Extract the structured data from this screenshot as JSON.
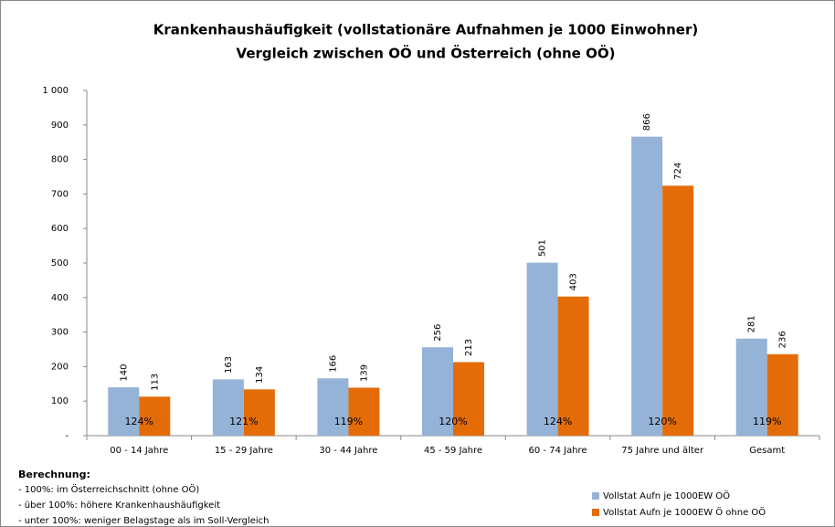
{
  "chart_data": {
    "type": "bar",
    "title": "Krankenhaushäufigkeit (vollstationäre Aufnahmen je 1000 Einwohner)",
    "subtitle": "Vergleich zwischen OÖ und Österreich (ohne OÖ)",
    "categories": [
      "00 - 14 Jahre",
      "15 - 29 Jahre",
      "30 - 44 Jahre",
      "45 - 59 Jahre",
      "60 - 74 Jahre",
      "75 Jahre und älter",
      "Gesamt"
    ],
    "series": [
      {
        "name": "Vollstat Aufn je 1000EW OÖ",
        "color": "#95b3d7",
        "values": [
          140,
          163,
          166,
          256,
          501,
          866,
          281
        ]
      },
      {
        "name": "Vollstat Aufn je 1000EW Ö ohne OÖ",
        "color": "#e36c09",
        "values": [
          113,
          134,
          139,
          213,
          403,
          724,
          236
        ]
      }
    ],
    "annotations": [
      "124%",
      "121%",
      "119%",
      "120%",
      "124%",
      "120%",
      "119%"
    ],
    "ylim": [
      0,
      1000
    ],
    "yticks": [
      {
        "value": 0,
        "label": "-"
      },
      100,
      200,
      300,
      400,
      500,
      600,
      700,
      800,
      900,
      {
        "value": 1000,
        "label": "1 000"
      }
    ],
    "grid": false,
    "legend": "bottom-right",
    "note_title": "Berechnung:",
    "notes": [
      "- 100%: im Österreichschnitt (ohne OÖ)",
      "- über 100%: höhere Krankenhaushäufigkeit",
      "- unter 100%: weniger Belagstage als im Soll-Vergleich"
    ]
  }
}
